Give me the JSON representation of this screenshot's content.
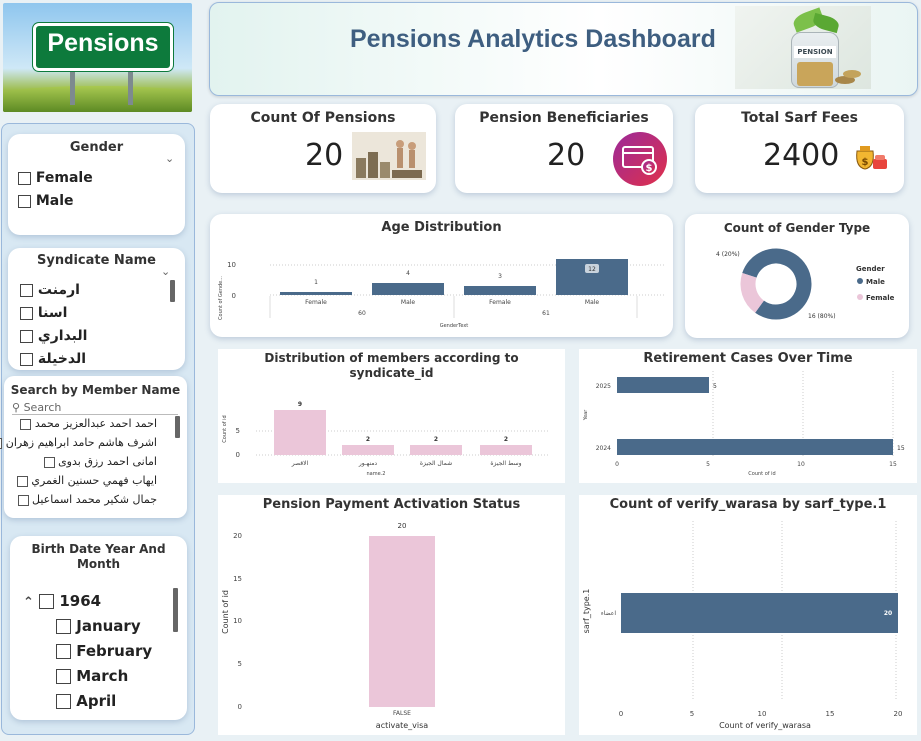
{
  "header": {
    "title": "Pensions Analytics Dashboard",
    "logo_text": "Pensions",
    "photo_jar_label": "PENSION"
  },
  "kpis": {
    "count_pensions": {
      "title": "Count Of Pensions",
      "value": "20"
    },
    "beneficiaries": {
      "title": "Pension Beneficiaries",
      "value": "20"
    },
    "sarf_fees": {
      "title": "Total Sarf Fees",
      "value": "2400"
    }
  },
  "filters": {
    "gender": {
      "title": "Gender",
      "options": [
        "Female",
        "Male"
      ]
    },
    "syndicate": {
      "title": "Syndicate Name",
      "options": [
        "ارمنت",
        "اسنا",
        "البداري",
        "الدخيلة"
      ]
    },
    "member_search": {
      "title": "Search by Member Name",
      "placeholder": "Search",
      "options": [
        "احمد احمد عبدالعزيز محمد",
        "اشرف هاشم حامد ابراهيم زهران",
        "امانى احمد رزق بدوى",
        "ايهاب فهمي حسنين الغمري",
        "جمال شكير محمد اسماعيل"
      ]
    },
    "birth_date": {
      "title": "Birth Date Year And Month",
      "year": "1964",
      "months": [
        "January",
        "February",
        "March",
        "April"
      ]
    }
  },
  "colors": {
    "male": "#4a6a8a",
    "female": "#ebc6d9",
    "title_blue": "#3e5e80"
  },
  "charts": {
    "age": {
      "title": "Age Distribution",
      "ylabel": "Count of Gende...",
      "xlabel": "GenderText",
      "yticks": [
        "0",
        "10"
      ],
      "groups": [
        "60",
        "61"
      ]
    },
    "gender_type": {
      "title": "Count of Gender Type",
      "legend_title": "Gender",
      "label_female": "4 (20%)",
      "label_male": "16 (80%)"
    },
    "syndicate": {
      "title_line1": "Distribution of members according to",
      "title_line2": "syndicate_id",
      "ylabel": "Count of id",
      "xlabel": "name.2",
      "yticks": [
        "0",
        "5"
      ]
    },
    "retirement": {
      "title": "Retirement Cases Over Time",
      "ylabel": "Year",
      "xlabel": "Count of id",
      "xticks": [
        "0",
        "5",
        "10",
        "15"
      ]
    },
    "activation": {
      "title": "Pension Payment Activation Status",
      "ylabel": "Count of id",
      "xlabel": "activate_visa",
      "yticks": [
        "0",
        "5",
        "10",
        "15",
        "20"
      ]
    },
    "warasa": {
      "title": "Count of verify_warasa by sarf_type.1",
      "ylabel": "sarf_type.1",
      "xlabel": "Count of verify_warasa",
      "xticks": [
        "0",
        "5",
        "10",
        "15",
        "20"
      ]
    }
  },
  "chart_data": [
    {
      "type": "bar",
      "title": "Age Distribution",
      "xlabel": "GenderText",
      "ylabel": "Count of Gende...",
      "categories": [
        "Female",
        "Male",
        "Female",
        "Male"
      ],
      "groups": [
        "60",
        "60",
        "61",
        "61"
      ],
      "values": [
        1,
        4,
        3,
        12
      ],
      "ylim": [
        0,
        12
      ]
    },
    {
      "type": "pie",
      "title": "Count of Gender Type",
      "categories": [
        "Male",
        "Female"
      ],
      "values": [
        16,
        4
      ],
      "percent": [
        80,
        20
      ],
      "legend": "right"
    },
    {
      "type": "bar",
      "title": "Distribution of members according to syndicate_id",
      "xlabel": "name.2",
      "ylabel": "Count of id",
      "categories": [
        "الاقصر",
        "دمنهـور",
        "شمال الجيزة",
        "وسط الجيزة"
      ],
      "values": [
        9,
        2,
        2,
        2
      ],
      "ylim": [
        0,
        9
      ]
    },
    {
      "type": "bar",
      "orientation": "horizontal",
      "title": "Retirement Cases Over Time",
      "xlabel": "Count of id",
      "ylabel": "Year",
      "categories": [
        "2025",
        "2024"
      ],
      "values": [
        5,
        15
      ],
      "xlim": [
        0,
        15
      ]
    },
    {
      "type": "bar",
      "title": "Pension Payment Activation Status",
      "xlabel": "activate_visa",
      "ylabel": "Count of id",
      "categories": [
        "FALSE"
      ],
      "values": [
        20
      ],
      "ylim": [
        0,
        20
      ]
    },
    {
      "type": "bar",
      "orientation": "horizontal",
      "title": "Count of verify_warasa by sarf_type.1",
      "xlabel": "Count of verify_warasa",
      "ylabel": "sarf_type.1",
      "categories": [
        "اعضاء"
      ],
      "values": [
        20
      ],
      "xlim": [
        0,
        20
      ]
    }
  ]
}
